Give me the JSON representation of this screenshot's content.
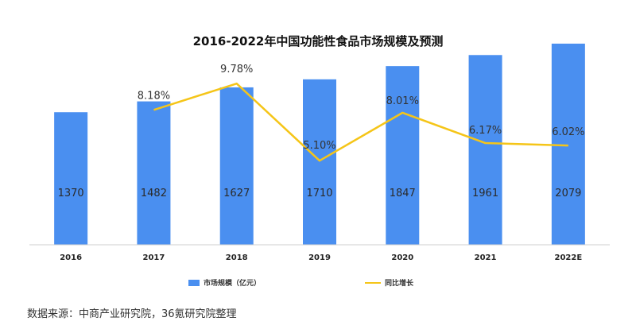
{
  "chart_data": {
    "type": "bar",
    "title": "2016-2022年中国功能性食品市场规模及预测",
    "categories": [
      "2016",
      "2017",
      "2018",
      "2019",
      "2020",
      "2021",
      "2022E"
    ],
    "series": [
      {
        "name": "市场规模（亿元）",
        "kind": "bar",
        "color": "#4a8ff0",
        "values": [
          1370,
          1482,
          1627,
          1710,
          1847,
          1961,
          2079
        ],
        "labels": [
          "1370",
          "1482",
          "1627",
          "1710",
          "1847",
          "1961",
          "2079"
        ]
      },
      {
        "name": "同比增长",
        "kind": "line",
        "color": "#f5c518",
        "values": [
          null,
          8.18,
          9.78,
          5.1,
          8.01,
          6.17,
          6.02
        ],
        "labels": [
          "",
          "8.18%",
          "9.78%",
          "5.10%",
          "8.01%",
          "6.17%",
          "6.02%"
        ]
      }
    ],
    "ylim": [
      0,
      2300
    ],
    "y2lim": [
      0,
      13.5
    ],
    "grid": false,
    "legend": "bottom-center"
  },
  "source": "数据来源：中商产业研究院，36氪研究院整理"
}
